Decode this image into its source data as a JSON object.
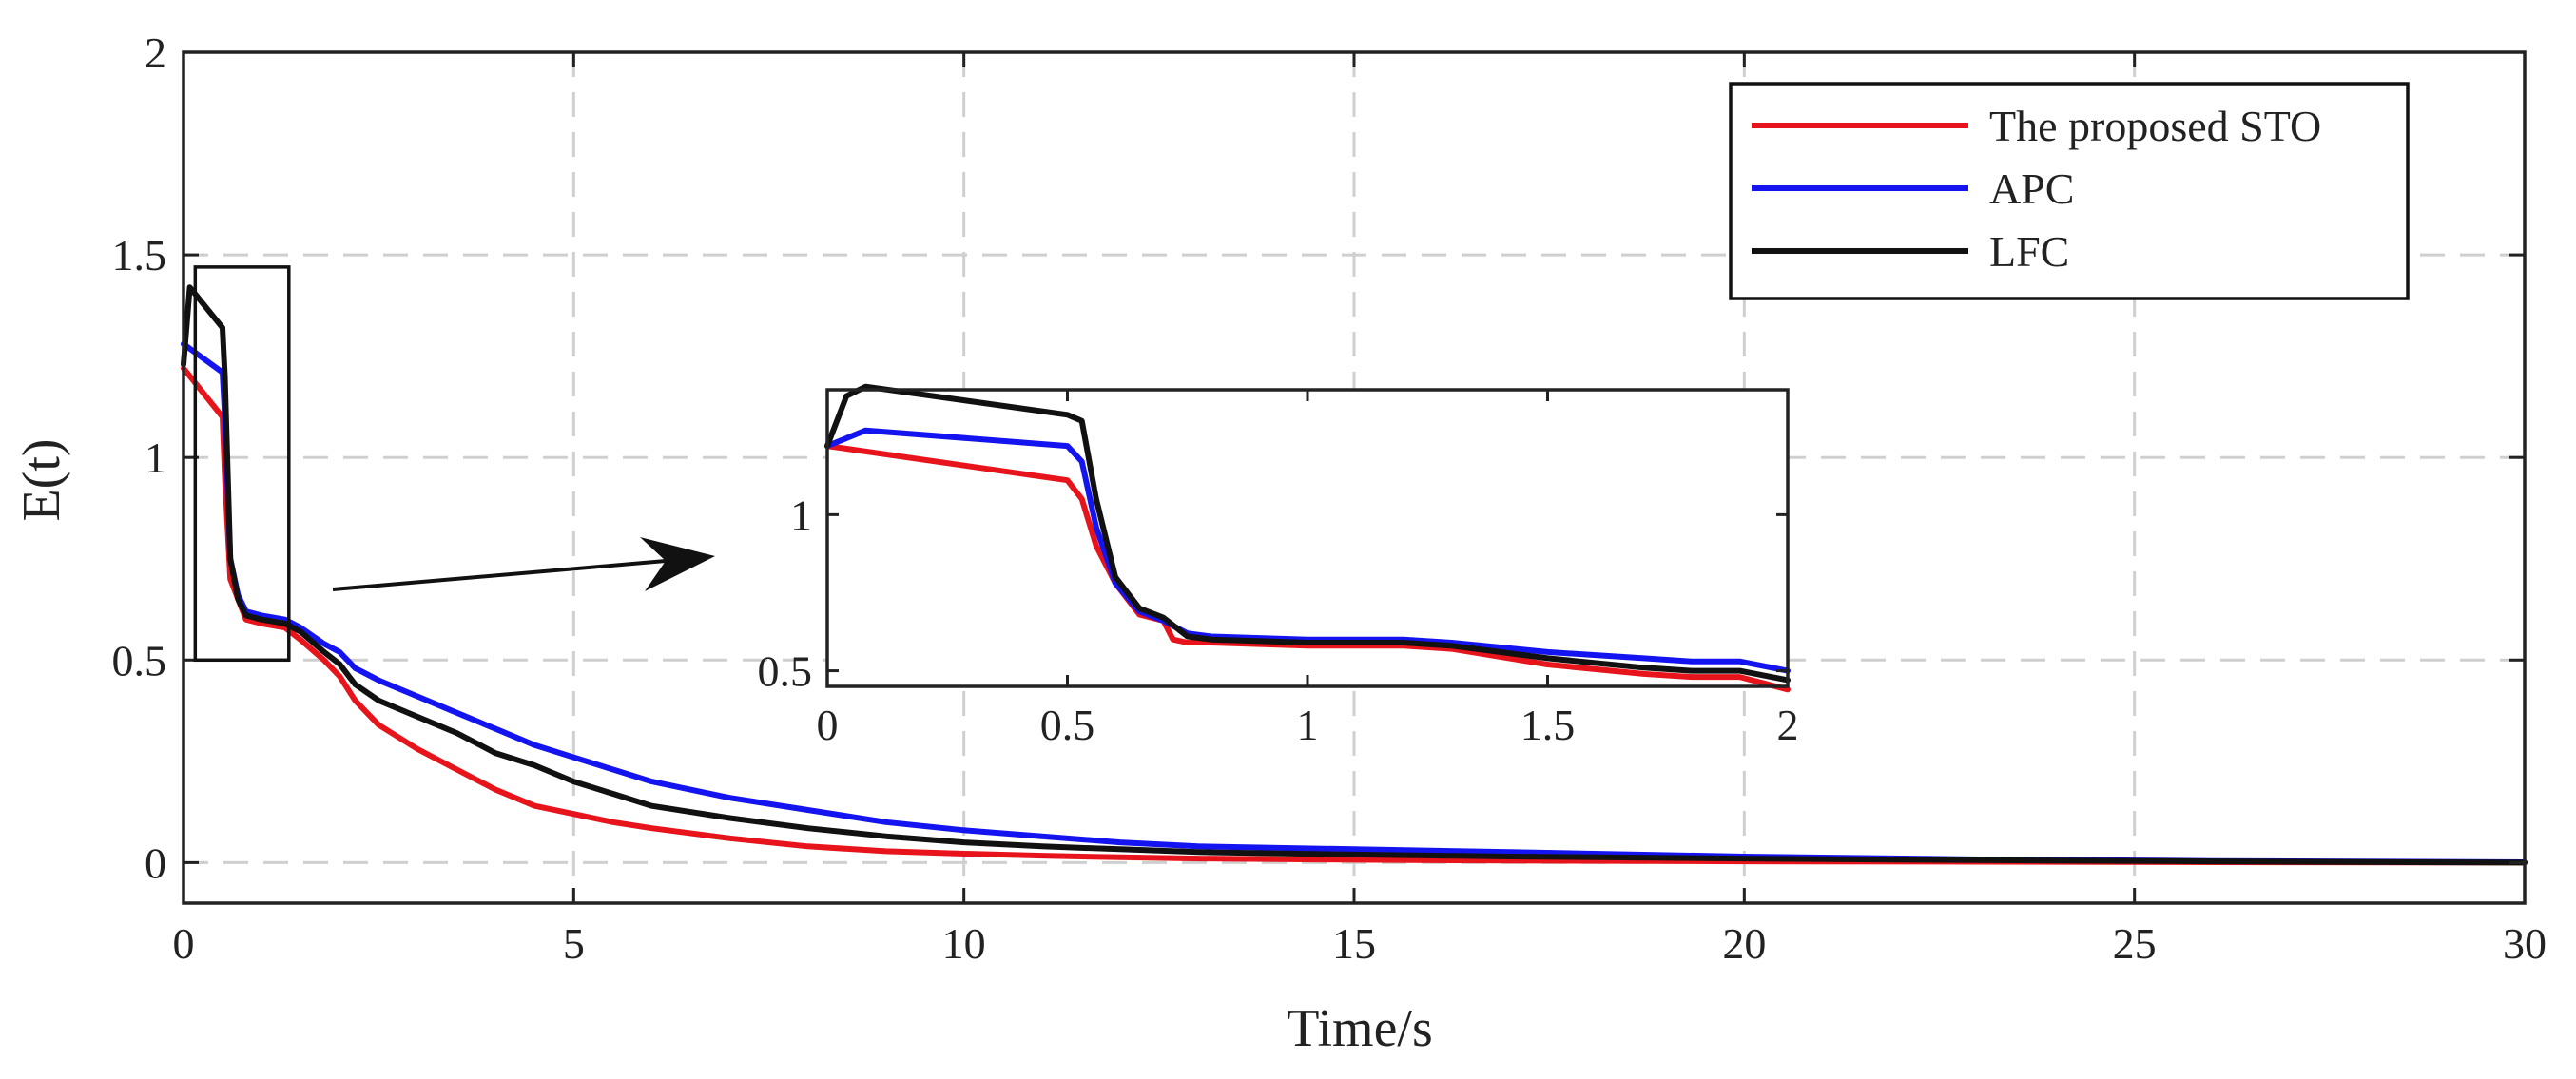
{
  "chart_data": [
    {
      "id": "main",
      "type": "line",
      "title": "",
      "xlabel": "Time/s",
      "ylabel": "E(t)",
      "xlim": [
        0,
        30
      ],
      "ylim": [
        -0.1,
        2
      ],
      "xticks": [
        0,
        5,
        10,
        15,
        20,
        25,
        30
      ],
      "xtick_labels": [
        "0",
        "5",
        "10",
        "15",
        "20",
        "25",
        "30"
      ],
      "yticks": [
        0,
        0.5,
        1,
        1.5,
        2
      ],
      "ytick_labels": [
        "0",
        "0.5",
        "1",
        "1.5",
        "2"
      ],
      "grid": true,
      "legend_position": "top-right",
      "zoom_box": {
        "x": [
          0.15,
          1.35
        ],
        "y": [
          0.5,
          1.47
        ]
      },
      "series": [
        {
          "name": "The proposed STO",
          "color": "#e8141b",
          "x": [
            0,
            0.5,
            0.53,
            0.6,
            0.7,
            0.8,
            1,
            1.3,
            1.5,
            1.8,
            2,
            2.2,
            2.5,
            3,
            3.5,
            4,
            4.5,
            5,
            5.5,
            6,
            7,
            8,
            9,
            10,
            11,
            12,
            13,
            15,
            17,
            20,
            23,
            26,
            30
          ],
          "values": [
            1.22,
            1.1,
            0.95,
            0.7,
            0.65,
            0.6,
            0.59,
            0.58,
            0.55,
            0.5,
            0.46,
            0.4,
            0.34,
            0.28,
            0.23,
            0.18,
            0.14,
            0.12,
            0.1,
            0.085,
            0.06,
            0.04,
            0.028,
            0.022,
            0.017,
            0.013,
            0.01,
            0.007,
            0.005,
            0.003,
            0.002,
            0.001,
            0.0
          ]
        },
        {
          "name": "APC",
          "color": "#1414f0",
          "x": [
            0,
            0.5,
            0.53,
            0.6,
            0.7,
            0.8,
            1,
            1.3,
            1.5,
            1.8,
            2,
            2.2,
            2.5,
            3,
            3.5,
            4,
            4.5,
            5,
            5.5,
            6,
            7,
            8,
            9,
            10,
            11,
            12,
            13,
            15,
            17,
            20,
            23,
            26,
            30
          ],
          "values": [
            1.28,
            1.21,
            1.1,
            0.75,
            0.66,
            0.62,
            0.61,
            0.6,
            0.58,
            0.54,
            0.52,
            0.48,
            0.45,
            0.41,
            0.37,
            0.33,
            0.29,
            0.26,
            0.23,
            0.2,
            0.16,
            0.13,
            0.1,
            0.08,
            0.065,
            0.05,
            0.04,
            0.033,
            0.026,
            0.015,
            0.008,
            0.004,
            0.001
          ]
        },
        {
          "name": "LFC",
          "color": "#111111",
          "x": [
            0,
            0.08,
            0.5,
            0.53,
            0.6,
            0.7,
            0.8,
            1,
            1.3,
            1.5,
            1.8,
            2,
            2.2,
            2.5,
            3,
            3.5,
            4,
            4.5,
            5,
            5.5,
            6,
            7,
            8,
            9,
            10,
            11,
            12,
            13,
            15,
            17,
            20,
            23,
            26,
            30
          ],
          "values": [
            1.23,
            1.42,
            1.32,
            1.2,
            0.75,
            0.65,
            0.61,
            0.6,
            0.59,
            0.57,
            0.52,
            0.49,
            0.44,
            0.4,
            0.36,
            0.32,
            0.27,
            0.24,
            0.2,
            0.17,
            0.14,
            0.11,
            0.085,
            0.065,
            0.05,
            0.04,
            0.033,
            0.026,
            0.02,
            0.015,
            0.01,
            0.006,
            0.003,
            0.0
          ]
        }
      ]
    },
    {
      "id": "inset",
      "type": "line",
      "title": "",
      "xlabel": "",
      "ylabel": "",
      "xlim": [
        0,
        2
      ],
      "ylim": [
        0.45,
        1.4
      ],
      "xticks": [
        0,
        0.5,
        1,
        1.5,
        2
      ],
      "xtick_labels": [
        "0",
        "0.5",
        "1",
        "1.5",
        "2"
      ],
      "yticks": [
        0.5,
        1
      ],
      "ytick_labels": [
        "0.5",
        "1"
      ],
      "grid": false,
      "series": [
        {
          "name": "The proposed STO",
          "color": "#e8141b",
          "x": [
            0,
            0.5,
            0.53,
            0.56,
            0.6,
            0.65,
            0.7,
            0.72,
            0.75,
            0.8,
            1,
            1.2,
            1.3,
            1.5,
            1.7,
            1.8,
            1.9,
            2
          ],
          "values": [
            1.22,
            1.11,
            1.05,
            0.9,
            0.78,
            0.68,
            0.66,
            0.6,
            0.59,
            0.59,
            0.58,
            0.58,
            0.57,
            0.52,
            0.49,
            0.48,
            0.48,
            0.44
          ]
        },
        {
          "name": "APC",
          "color": "#1414f0",
          "x": [
            0,
            0.08,
            0.5,
            0.53,
            0.56,
            0.6,
            0.65,
            0.7,
            0.75,
            0.8,
            1,
            1.2,
            1.3,
            1.5,
            1.7,
            1.8,
            1.9,
            2
          ],
          "values": [
            1.22,
            1.27,
            1.22,
            1.17,
            0.96,
            0.78,
            0.69,
            0.66,
            0.62,
            0.61,
            0.6,
            0.6,
            0.59,
            0.56,
            0.54,
            0.53,
            0.53,
            0.5
          ]
        },
        {
          "name": "LFC",
          "color": "#111111",
          "x": [
            0,
            0.04,
            0.08,
            0.5,
            0.53,
            0.56,
            0.6,
            0.65,
            0.7,
            0.75,
            0.8,
            1,
            1.2,
            1.3,
            1.5,
            1.7,
            1.8,
            1.9,
            2
          ],
          "values": [
            1.22,
            1.38,
            1.41,
            1.32,
            1.3,
            1.05,
            0.8,
            0.7,
            0.67,
            0.61,
            0.6,
            0.59,
            0.59,
            0.58,
            0.54,
            0.51,
            0.5,
            0.5,
            0.47
          ]
        }
      ]
    }
  ]
}
